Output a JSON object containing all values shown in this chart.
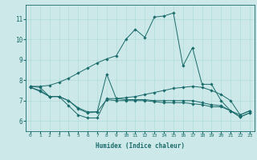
{
  "xlabel": "Humidex (Indice chaleur)",
  "bg_color": "#cce8e8",
  "line_color": "#1a6b6b",
  "xlim": [
    -0.5,
    23.5
  ],
  "ylim": [
    5.5,
    11.7
  ],
  "yticks": [
    6,
    7,
    8,
    9,
    10,
    11
  ],
  "xticks": [
    0,
    1,
    2,
    3,
    4,
    5,
    6,
    7,
    8,
    9,
    10,
    11,
    12,
    13,
    14,
    15,
    16,
    17,
    18,
    19,
    20,
    21,
    22,
    23
  ],
  "series": [
    {
      "x": [
        0,
        1,
        2,
        3,
        4,
        5,
        6,
        7,
        8,
        9,
        10,
        11,
        12,
        13,
        14,
        15,
        16,
        17,
        18,
        19,
        20,
        21,
        22,
        23
      ],
      "y": [
        7.7,
        7.7,
        7.75,
        7.9,
        8.1,
        8.35,
        8.6,
        8.85,
        9.05,
        9.2,
        10.0,
        10.5,
        10.1,
        11.1,
        11.15,
        11.3,
        8.7,
        9.6,
        7.8,
        7.8,
        7.0,
        6.5,
        6.3,
        6.5
      ]
    },
    {
      "x": [
        0,
        1,
        2,
        3,
        4,
        5,
        6,
        7,
        8,
        9,
        10,
        11,
        12,
        13,
        14,
        15,
        16,
        17,
        18,
        19,
        20,
        21,
        22,
        23
      ],
      "y": [
        7.7,
        7.65,
        7.2,
        7.2,
        6.75,
        6.3,
        6.15,
        6.15,
        7.1,
        7.1,
        7.15,
        7.2,
        7.3,
        7.4,
        7.5,
        7.6,
        7.65,
        7.7,
        7.65,
        7.5,
        7.3,
        7.0,
        6.3,
        6.5
      ]
    },
    {
      "x": [
        0,
        1,
        2,
        3,
        4,
        5,
        6,
        7,
        8,
        9,
        10,
        11,
        12,
        13,
        14,
        15,
        16,
        17,
        18,
        19,
        20,
        21,
        22,
        23
      ],
      "y": [
        7.65,
        7.5,
        7.2,
        7.2,
        7.0,
        6.65,
        6.45,
        6.45,
        8.3,
        7.1,
        7.05,
        7.05,
        7.05,
        7.0,
        7.0,
        7.0,
        7.0,
        7.0,
        6.9,
        6.8,
        6.75,
        6.5,
        6.2,
        6.4
      ]
    },
    {
      "x": [
        0,
        1,
        2,
        3,
        4,
        5,
        6,
        7,
        8,
        9,
        10,
        11,
        12,
        13,
        14,
        15,
        16,
        17,
        18,
        19,
        20,
        21,
        22,
        23
      ],
      "y": [
        7.65,
        7.45,
        7.2,
        7.2,
        7.0,
        6.6,
        6.4,
        6.45,
        7.05,
        7.0,
        7.0,
        7.0,
        7.0,
        6.95,
        6.9,
        6.9,
        6.9,
        6.85,
        6.8,
        6.7,
        6.7,
        6.5,
        6.2,
        6.4
      ]
    }
  ]
}
